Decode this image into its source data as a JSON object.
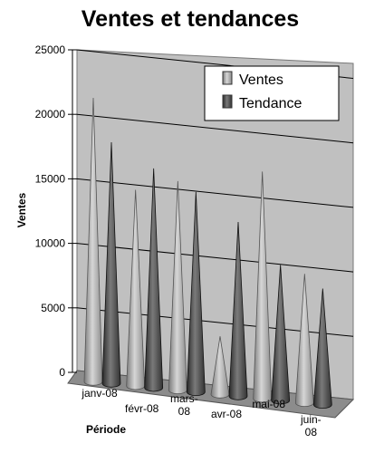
{
  "chart_data": {
    "type": "bar",
    "variant": "3d-cone",
    "title": "Ventes et tendances",
    "xlabel": "Période",
    "ylabel": "Ventes",
    "ylim": [
      0,
      25000
    ],
    "yticks": [
      "0",
      "5000",
      "10000",
      "15000",
      "20000",
      "25000"
    ],
    "categories": [
      "janv-08",
      "févr-08",
      "mars-08",
      "avr-08",
      "mai-08",
      "juin-08"
    ],
    "series": [
      {
        "name": "Ventes",
        "values": [
          22000,
          15200,
          16200,
          4500,
          17600,
          10000
        ]
      },
      {
        "name": "Tendance",
        "values": [
          18700,
          17000,
          15500,
          13500,
          10500,
          9000
        ]
      }
    ],
    "legend_position": "top-right",
    "grid": true,
    "colors": {
      "Ventes": "#b4b4b4",
      "Tendance": "#5a5a5a",
      "wall": "#c0c0c0",
      "floor": "#8c8c8c"
    }
  }
}
